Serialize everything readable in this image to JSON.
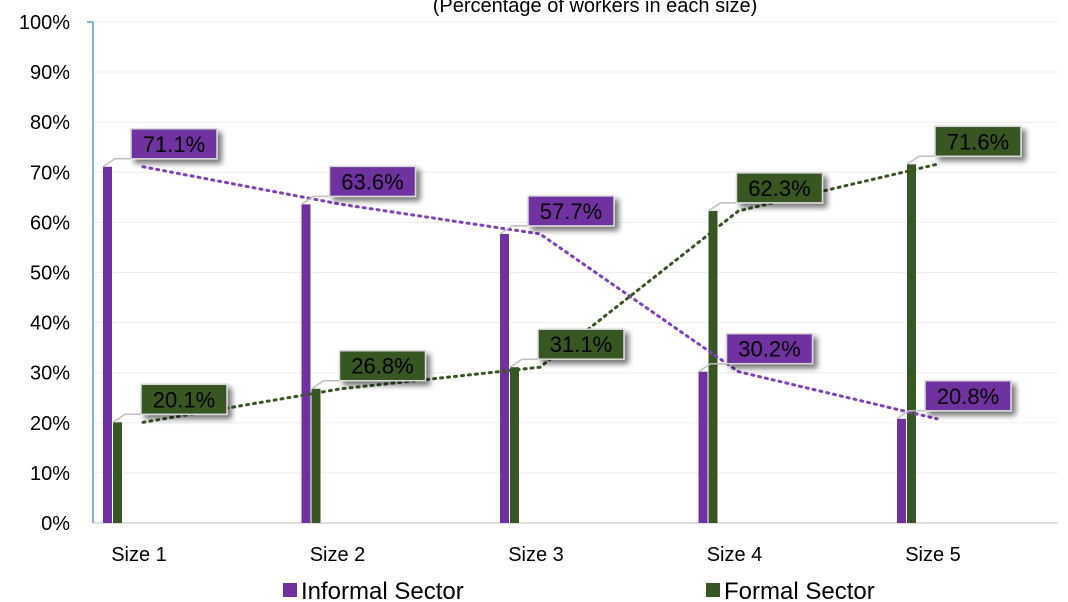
{
  "chart_data": {
    "type": "bar",
    "title": "(Percentage of workers in each size)",
    "categories": [
      "Size 1",
      "Size 2",
      "Size 3",
      "Size 4",
      "Size 5"
    ],
    "series": [
      {
        "name": "Informal Sector",
        "color": "#7030A0",
        "values": [
          71.1,
          63.6,
          57.7,
          30.2,
          20.8
        ],
        "data_labels": [
          "71.1%",
          "63.6%",
          "57.7%",
          "30.2%",
          "20.8%"
        ]
      },
      {
        "name": "Formal Sector",
        "color": "#375623",
        "values": [
          20.1,
          26.8,
          31.1,
          62.3,
          71.6
        ],
        "data_labels": [
          "20.1%",
          "26.8%",
          "31.1%",
          "62.3%",
          "71.6%"
        ]
      }
    ],
    "ylim": [
      0,
      100
    ],
    "y_ticks": [
      "0%",
      "10%",
      "20%",
      "30%",
      "40%",
      "50%",
      "60%",
      "70%",
      "80%",
      "90%",
      "100%"
    ],
    "xlabel": "",
    "ylabel": "",
    "grid": true,
    "trendlines": "dotted",
    "legend_position": "bottom"
  }
}
